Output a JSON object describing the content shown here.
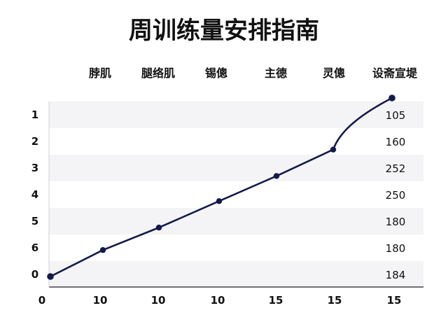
{
  "chart_data": {
    "type": "line",
    "title": "周训练量安排指南",
    "column_labels": [
      "脖肌",
      "腿络肌",
      "锡傯",
      "主德",
      "灵傯",
      "设斋宣堤"
    ],
    "row_labels": [
      "1",
      "2",
      "3",
      "4",
      "5",
      "6",
      "0"
    ],
    "right_values": [
      "105",
      "160",
      "252",
      "250",
      "180",
      "180",
      "184"
    ],
    "x_tick_labels": [
      "0",
      "10",
      "10",
      "10",
      "15",
      "15",
      "15"
    ],
    "grid": "horizontal bands",
    "legend": "none",
    "series": [
      {
        "color": "#141a4a",
        "points": [
          {
            "x": 0,
            "y": 0.0
          },
          {
            "x": 1,
            "y": 1.0
          },
          {
            "x": 2,
            "y": 1.85
          },
          {
            "x": 3,
            "y": 2.85
          },
          {
            "x": 4,
            "y": 3.8
          },
          {
            "x": 5,
            "y": 4.8
          },
          {
            "x": 6,
            "y": 6.75
          }
        ]
      }
    ]
  }
}
